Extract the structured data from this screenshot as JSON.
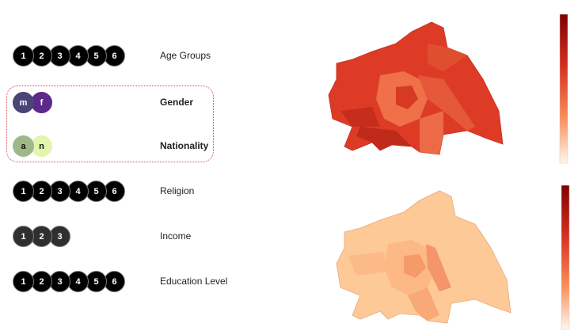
{
  "rows": [
    {
      "label": "Age Groups",
      "buttons": [
        "1",
        "2",
        "3",
        "4",
        "5",
        "6"
      ]
    },
    {
      "label": "Gender",
      "buttons": [
        "m",
        "f"
      ]
    },
    {
      "label": "Nationality",
      "buttons": [
        "a",
        "n"
      ]
    },
    {
      "label": "Religion",
      "buttons": [
        "1",
        "2",
        "3",
        "4",
        "5",
        "6"
      ]
    },
    {
      "label": "Income",
      "buttons": [
        "1",
        "2",
        "3"
      ]
    },
    {
      "label": "Education Level",
      "buttons": [
        "1",
        "2",
        "3",
        "4",
        "5",
        "6"
      ]
    }
  ]
}
